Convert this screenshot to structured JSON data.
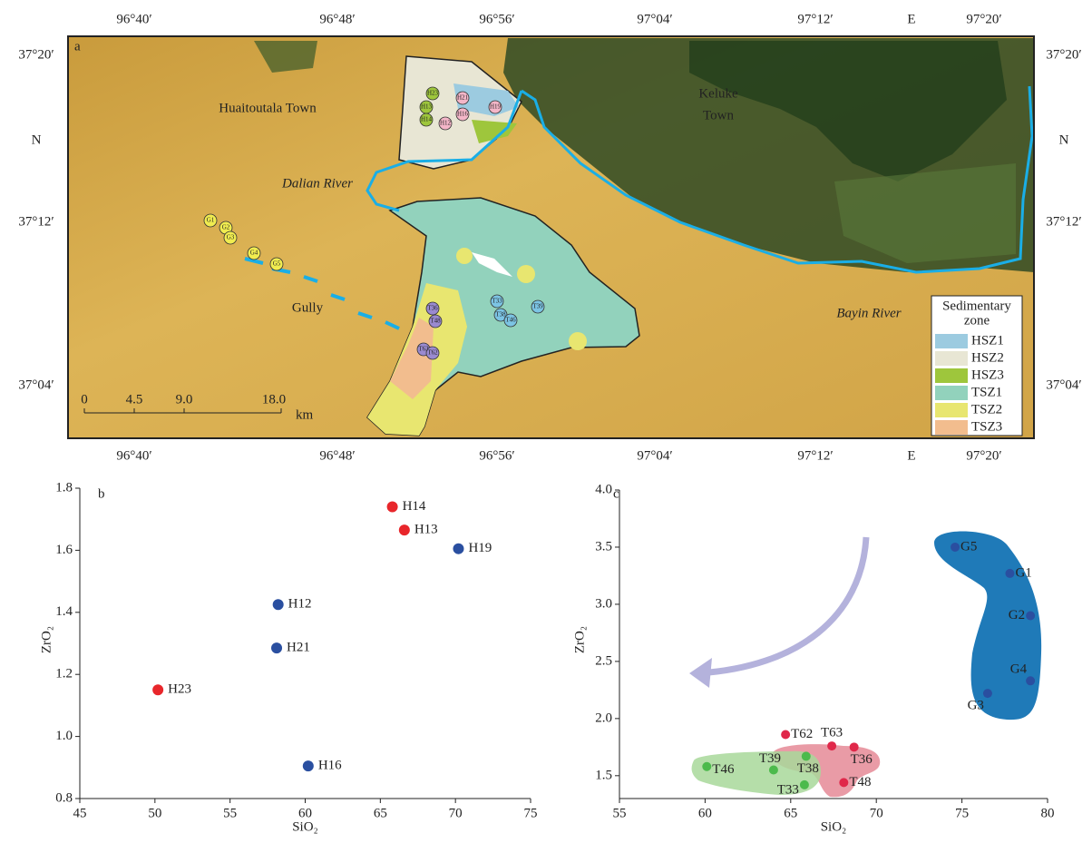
{
  "map": {
    "panel_label": "a",
    "lon_labels": [
      "96°40′",
      "96°48′",
      "96°56′",
      "97°04′",
      "97°12′",
      "E",
      "97°20′"
    ],
    "lat_labels": [
      "37°20′",
      "N",
      "37°12′",
      "37°04′"
    ],
    "place_labels": [
      "Huaitoutala Town",
      "Keluke",
      "Town",
      "Dalian River",
      "Gully",
      "Bayin River"
    ],
    "scale_labels": [
      "0",
      "4.5",
      "9.0",
      "18.0",
      "km"
    ],
    "legend_title": [
      "Sedimentary",
      "zone"
    ],
    "legend": [
      {
        "name": "HSZ1",
        "color": "#9ccbe0"
      },
      {
        "name": "HSZ2",
        "color": "#e8e6d4"
      },
      {
        "name": "HSZ3",
        "color": "#9ec63c"
      },
      {
        "name": "TSZ1",
        "color": "#92d2bc"
      },
      {
        "name": "TSZ2",
        "color": "#e8e670"
      },
      {
        "name": "TSZ3",
        "color": "#f2bd8e"
      }
    ],
    "samples": {
      "labels": [
        "G1",
        "G2",
        "G3",
        "G4",
        "G5",
        "H23",
        "H13",
        "H14",
        "H12",
        "H21",
        "H16",
        "H19",
        "T33",
        "T39",
        "T38",
        "T46",
        "T36",
        "T48",
        "T63",
        "T62"
      ],
      "colors": [
        "#f0ec50",
        "#f0ec50",
        "#f0ec50",
        "#f0ec50",
        "#f0ec50",
        "#9ec63c",
        "#9ec63c",
        "#9ec63c",
        "#f4b6c8",
        "#f4b6c8",
        "#f4b6c8",
        "#f4b6c8",
        "#7cc4e4",
        "#7cc4e4",
        "#7cc4e4",
        "#7cc4e4",
        "#9a8ad0",
        "#9a8ad0",
        "#9a8ad0",
        "#9a8ad0"
      ]
    }
  },
  "chart_data": [
    {
      "type": "scatter",
      "panel_label": "b",
      "x_label": "SiO₂",
      "y_label": "ZrO₂",
      "xlim": [
        45,
        75
      ],
      "xticks": [
        45,
        50,
        55,
        60,
        65,
        70,
        75
      ],
      "ylim": [
        0.8,
        1.8
      ],
      "yticks": [
        0.8,
        {
          "value": 1,
          "label": "1.0"
        },
        1.2,
        1.4,
        1.6,
        1.8
      ],
      "point_labels": [
        "H14",
        "H13",
        "H19",
        "H12",
        "H21",
        "H23",
        "H16"
      ],
      "x": [
        65.8,
        66.6,
        70.2,
        58.2,
        58.1,
        50.2,
        60.2
      ],
      "values": [
        1.74,
        1.665,
        1.605,
        1.425,
        1.285,
        1.15,
        0.905
      ],
      "point_colors": [
        "#e8262b",
        "#e8262b",
        "#2a4fa0",
        "#2a4fa0",
        "#2a4fa0",
        "#e8262b",
        "#2a4fa0"
      ]
    },
    {
      "type": "scatter",
      "panel_label": "c",
      "x_label": "SiO₂",
      "y_label": "ZrO₂",
      "xlim": [
        55,
        80
      ],
      "xticks": [
        55,
        60,
        65,
        70,
        75,
        80
      ],
      "ylim": [
        1.3,
        4.0
      ],
      "yticks": [
        1.5,
        {
          "value": 2,
          "label": "2.0"
        },
        2.5,
        {
          "value": 3,
          "label": "3.0"
        },
        3.5,
        {
          "value": 4,
          "label": "4.0"
        }
      ],
      "point_labels": [
        "G5",
        "G1",
        "G2",
        "G4",
        "G3",
        "T62",
        "T63",
        "T36",
        "T48",
        "T39",
        "T38",
        "T33",
        "T46"
      ],
      "x": [
        74.6,
        77.8,
        79.0,
        79.0,
        76.5,
        64.7,
        67.4,
        68.7,
        68.1,
        64.0,
        65.9,
        65.8,
        60.1
      ],
      "values": [
        3.5,
        3.27,
        2.9,
        2.33,
        2.22,
        1.86,
        1.76,
        1.75,
        1.44,
        1.55,
        1.67,
        1.42,
        1.58
      ],
      "point_colors": [
        "#2a4fa0",
        "#2a4fa0",
        "#2a4fa0",
        "#2a4fa0",
        "#2a4fa0",
        "#e0284a",
        "#e0284a",
        "#e0284a",
        "#e0284a",
        "#4cba4c",
        "#4cba4c",
        "#4cba4c",
        "#4cba4c"
      ]
    }
  ]
}
